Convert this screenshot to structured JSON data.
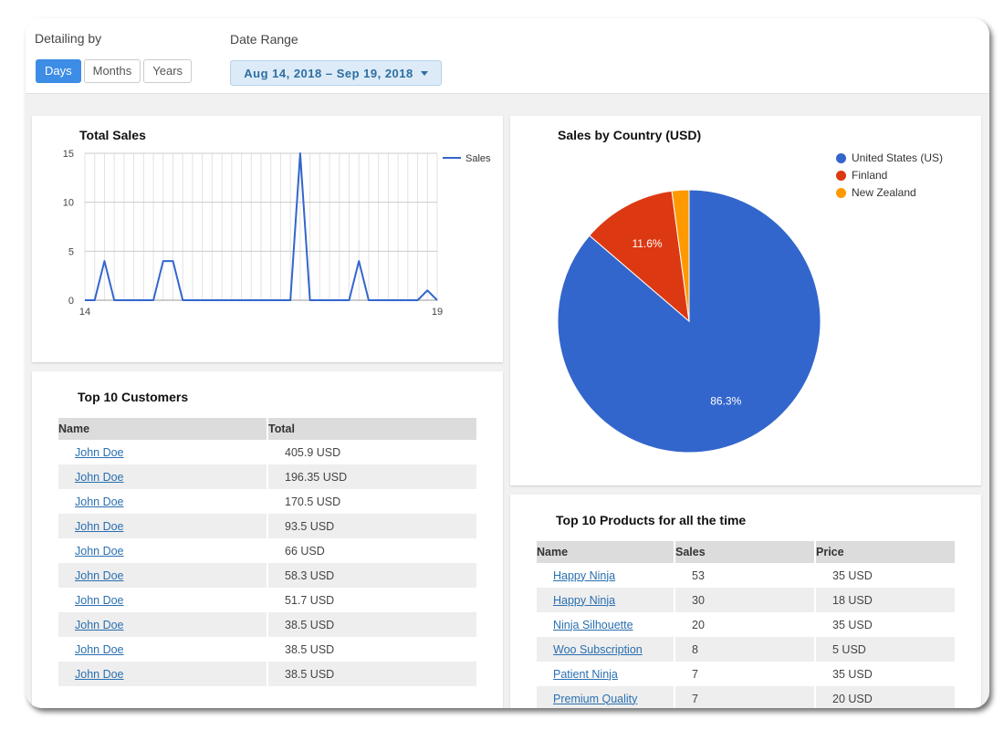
{
  "filters": {
    "detailing_label": "Detailing by",
    "detailing_options": [
      "Days",
      "Months",
      "Years"
    ],
    "detailing_selected": "Days",
    "date_range_label": "Date Range",
    "date_range_value": "Aug 14, 2018 – Sep 19, 2018"
  },
  "total_sales": {
    "title": "Total Sales",
    "legend": "Sales"
  },
  "sales_by_country": {
    "title": "Sales by Country (USD)"
  },
  "top_customers": {
    "title": "Top 10 Customers",
    "headers": [
      "Name",
      "Total"
    ],
    "rows": [
      [
        "John Doe",
        "405.9 USD"
      ],
      [
        "John Doe",
        "196.35 USD"
      ],
      [
        "John Doe",
        "170.5 USD"
      ],
      [
        "John Doe",
        "93.5 USD"
      ],
      [
        "John Doe",
        "66 USD"
      ],
      [
        "John Doe",
        "58.3 USD"
      ],
      [
        "John Doe",
        "51.7 USD"
      ],
      [
        "John Doe",
        "38.5 USD"
      ],
      [
        "John Doe",
        "38.5 USD"
      ],
      [
        "John Doe",
        "38.5 USD"
      ]
    ]
  },
  "top_products": {
    "title": "Top 10 Products for all the time",
    "headers": [
      "Name",
      "Sales",
      "Price"
    ],
    "rows": [
      [
        "Happy Ninja",
        "53",
        "35 USD"
      ],
      [
        "Happy Ninja",
        "30",
        "18 USD"
      ],
      [
        "Ninja Silhouette",
        "20",
        "35 USD"
      ],
      [
        "Woo Subscription",
        "8",
        "5 USD"
      ],
      [
        "Patient Ninja",
        "7",
        "35 USD"
      ],
      [
        "Premium Quality",
        "7",
        "20 USD"
      ]
    ]
  },
  "colors": {
    "accent": "#3d8ce6",
    "line": "#3366cc",
    "us": "#3366cc",
    "finland": "#dc3912",
    "nz": "#ff9900"
  },
  "chart_data": [
    {
      "type": "line",
      "title": "Total Sales",
      "x_tick_labels": [
        "14",
        "19"
      ],
      "y_ticks": [
        0,
        5,
        10,
        15
      ],
      "ylim": [
        0,
        15
      ],
      "grid": true,
      "legend_position": "right",
      "series": [
        {
          "name": "Sales",
          "values": [
            0,
            0,
            4,
            0,
            0,
            0,
            0,
            0,
            4,
            4,
            0,
            0,
            0,
            0,
            0,
            0,
            0,
            0,
            0,
            0,
            0,
            0,
            15,
            0,
            0,
            0,
            0,
            0,
            4,
            0,
            0,
            0,
            0,
            0,
            0,
            1,
            0
          ]
        }
      ]
    },
    {
      "type": "pie",
      "title": "Sales by Country (USD)",
      "legend_position": "top-right",
      "slices": [
        {
          "label": "United States (US)",
          "value": 86.3,
          "display": "86.3%",
          "color": "#3366cc"
        },
        {
          "label": "Finland",
          "value": 11.6,
          "display": "11.6%",
          "color": "#dc3912"
        },
        {
          "label": "New Zealand",
          "value": 2.1,
          "display": "",
          "color": "#ff9900"
        }
      ]
    }
  ]
}
